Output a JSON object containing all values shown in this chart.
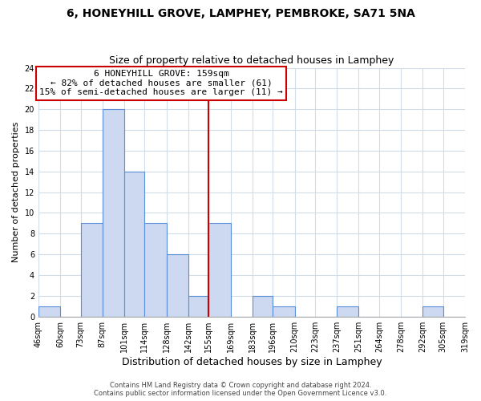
{
  "title": "6, HONEYHILL GROVE, LAMPHEY, PEMBROKE, SA71 5NA",
  "subtitle": "Size of property relative to detached houses in Lamphey",
  "xlabel": "Distribution of detached houses by size in Lamphey",
  "ylabel": "Number of detached properties",
  "bin_edges": [
    46,
    60,
    73,
    87,
    101,
    114,
    128,
    142,
    155,
    169,
    183,
    196,
    210,
    223,
    237,
    251,
    264,
    278,
    292,
    305,
    319
  ],
  "bin_labels": [
    "46sqm",
    "60sqm",
    "73sqm",
    "87sqm",
    "101sqm",
    "114sqm",
    "128sqm",
    "142sqm",
    "155sqm",
    "169sqm",
    "183sqm",
    "196sqm",
    "210sqm",
    "223sqm",
    "237sqm",
    "251sqm",
    "264sqm",
    "278sqm",
    "292sqm",
    "305sqm",
    "319sqm"
  ],
  "counts": [
    1,
    0,
    9,
    20,
    14,
    9,
    6,
    2,
    9,
    0,
    2,
    1,
    0,
    0,
    1,
    0,
    0,
    0,
    1,
    0
  ],
  "bar_color": "#ccd9f0",
  "bar_edge_color": "#5b8dd9",
  "vline_x": 155,
  "vline_color": "#cc0000",
  "annotation_line1": "6 HONEYHILL GROVE: 159sqm",
  "annotation_line2": "← 82% of detached houses are smaller (61)",
  "annotation_line3": "15% of semi-detached houses are larger (11) →",
  "annotation_box_color": "#ffffff",
  "annotation_box_edge_color": "#cc0000",
  "ylim": [
    0,
    24
  ],
  "yticks": [
    0,
    2,
    4,
    6,
    8,
    10,
    12,
    14,
    16,
    18,
    20,
    22,
    24
  ],
  "grid_color": "#d0dce8",
  "footer_line1": "Contains HM Land Registry data © Crown copyright and database right 2024.",
  "footer_line2": "Contains public sector information licensed under the Open Government Licence v3.0.",
  "title_fontsize": 10,
  "subtitle_fontsize": 9,
  "xlabel_fontsize": 9,
  "ylabel_fontsize": 8,
  "tick_fontsize": 7,
  "annotation_fontsize": 8,
  "footer_fontsize": 6
}
